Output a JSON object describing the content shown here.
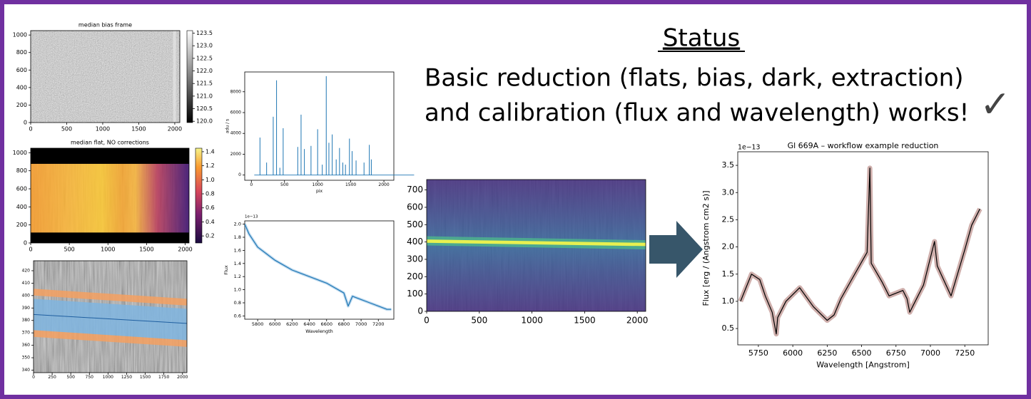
{
  "status": {
    "heading": "Status",
    "lines": [
      "Basic reduction (flats, bias, dark, extraction)",
      "and calibration (flux and wavelength) works!"
    ],
    "check": "✓"
  },
  "figures": [
    {
      "title": "median bias frame",
      "xlim": [
        0,
        2070
      ],
      "ylim": [
        0,
        1050
      ],
      "xticks": [
        0,
        500,
        1000,
        1500,
        2000
      ],
      "yticks": [
        0,
        200,
        400,
        600,
        800,
        1000
      ],
      "colorbar": {
        "lim": [
          119.95,
          123.6
        ],
        "ticks": [
          {
            "value": 120,
            "label": "120.0"
          },
          120.5,
          {
            "value": 121,
            "label": "121.0"
          },
          121.5,
          {
            "value": 122,
            "label": "122.0"
          },
          122.5,
          {
            "value": 123,
            "label": "123.0"
          },
          123.5
        ]
      }
    },
    {
      "title": "median flat, NO corrections",
      "xlim": [
        0,
        2050
      ],
      "ylim": [
        0,
        1050
      ],
      "xticks": [
        0,
        500,
        1000,
        1500,
        2000
      ],
      "yticks": [
        0,
        200,
        400,
        600,
        800,
        1000
      ],
      "colorbar": {
        "lim": [
          0.1,
          1.45
        ],
        "ticks": [
          0.2,
          0.4,
          0.6,
          0.8,
          {
            "value": 1,
            "label": "1.0"
          },
          1.2,
          1.4
        ]
      }
    },
    {
      "xlim": [
        0,
        2060
      ],
      "ylim": [
        338,
        428
      ],
      "xticks": [
        0,
        250,
        500,
        750,
        1000,
        1250,
        1500,
        1750,
        2000
      ],
      "yticks": [
        340,
        350,
        360,
        370,
        380,
        390,
        400,
        410,
        420
      ]
    },
    {
      "xlabel": "pix",
      "ylabel": "adu / s",
      "xlim": [
        -100,
        2150
      ],
      "ylim": [
        -500,
        9900
      ],
      "xticks": [
        0,
        500,
        1000,
        1500,
        2000
      ],
      "yticks": [
        0,
        2000,
        4000,
        6000,
        8000
      ],
      "stems": {
        "x": [
          130,
          230,
          330,
          380,
          430,
          480,
          700,
          750,
          800,
          900,
          1000,
          1070,
          1130,
          1170,
          1220,
          1280,
          1330,
          1380,
          1420,
          1480,
          1520,
          1580,
          1700,
          1780,
          1810
        ],
        "y": [
          3600,
          1200,
          5600,
          9100,
          700,
          4500,
          2700,
          5800,
          2500,
          2800,
          4400,
          1000,
          9500,
          3100,
          3900,
          1500,
          2600,
          1200,
          1000,
          3500,
          2300,
          1400,
          1200,
          2900,
          1500
        ]
      }
    },
    {
      "offset": "1e−13",
      "xlabel": "Wavelength",
      "ylabel": "Flux",
      "xlim": [
        5650,
        7380
      ],
      "ylim": [
        0.55,
        2.05
      ],
      "xticks": [
        5800,
        6000,
        6200,
        6400,
        6600,
        6800,
        7000,
        7200
      ],
      "yticks": [
        0.6,
        0.8,
        {
          "value": 1,
          "label": "1.0"
        },
        1.2,
        1.4,
        1.6,
        1.8,
        {
          "value": 2,
          "label": "2.0"
        }
      ],
      "line": {
        "x": [
          5650,
          5700,
          5800,
          5900,
          6000,
          6200,
          6400,
          6600,
          6800,
          6850,
          6900,
          7000,
          7100,
          7200,
          7300,
          7350
        ],
        "y": [
          2.0,
          1.85,
          1.65,
          1.55,
          1.45,
          1.3,
          1.2,
          1.1,
          0.95,
          0.75,
          0.9,
          0.85,
          0.8,
          0.75,
          0.7,
          0.7
        ]
      }
    },
    {
      "xlim": [
        0,
        2080
      ],
      "ylim": [
        0,
        760
      ],
      "xticks": [
        0,
        500,
        1000,
        1500,
        2000
      ],
      "yticks": [
        0,
        100,
        200,
        300,
        400,
        500,
        600,
        700
      ]
    },
    {
      "title": "Gl 669A – workflow example reduction",
      "offset": "1e−13",
      "xlabel": "Wavelength [Angstrom]",
      "ylabel": "Flux [erg / (Angstrom cm2 s)]",
      "xlim": [
        5600,
        7420
      ],
      "ylim": [
        0.2,
        3.75
      ],
      "xticks": [
        5750,
        6000,
        6250,
        6500,
        6750,
        7000,
        7250
      ],
      "yticks": [
        0.5,
        {
          "value": 1,
          "label": "1.0"
        },
        1.5,
        {
          "value": 2,
          "label": "2.0"
        },
        2.5,
        {
          "value": 3,
          "label": "3.0"
        },
        3.5
      ],
      "line": {
        "x": [
          5620,
          5700,
          5760,
          5800,
          5850,
          5880,
          5890,
          5950,
          6050,
          6150,
          6250,
          6300,
          6350,
          6450,
          6540,
          6560,
          6570,
          6650,
          6700,
          6800,
          6830,
          6850,
          6950,
          7030,
          7050,
          7150,
          7250,
          7300,
          7360
        ],
        "y": [
          1.0,
          1.5,
          1.4,
          1.1,
          0.8,
          0.4,
          0.7,
          1.0,
          1.25,
          0.9,
          0.65,
          0.75,
          1.05,
          1.5,
          1.9,
          3.45,
          1.7,
          1.35,
          1.1,
          1.2,
          1.05,
          0.8,
          1.3,
          2.1,
          1.65,
          1.1,
          1.95,
          2.4,
          2.7
        ]
      }
    }
  ]
}
